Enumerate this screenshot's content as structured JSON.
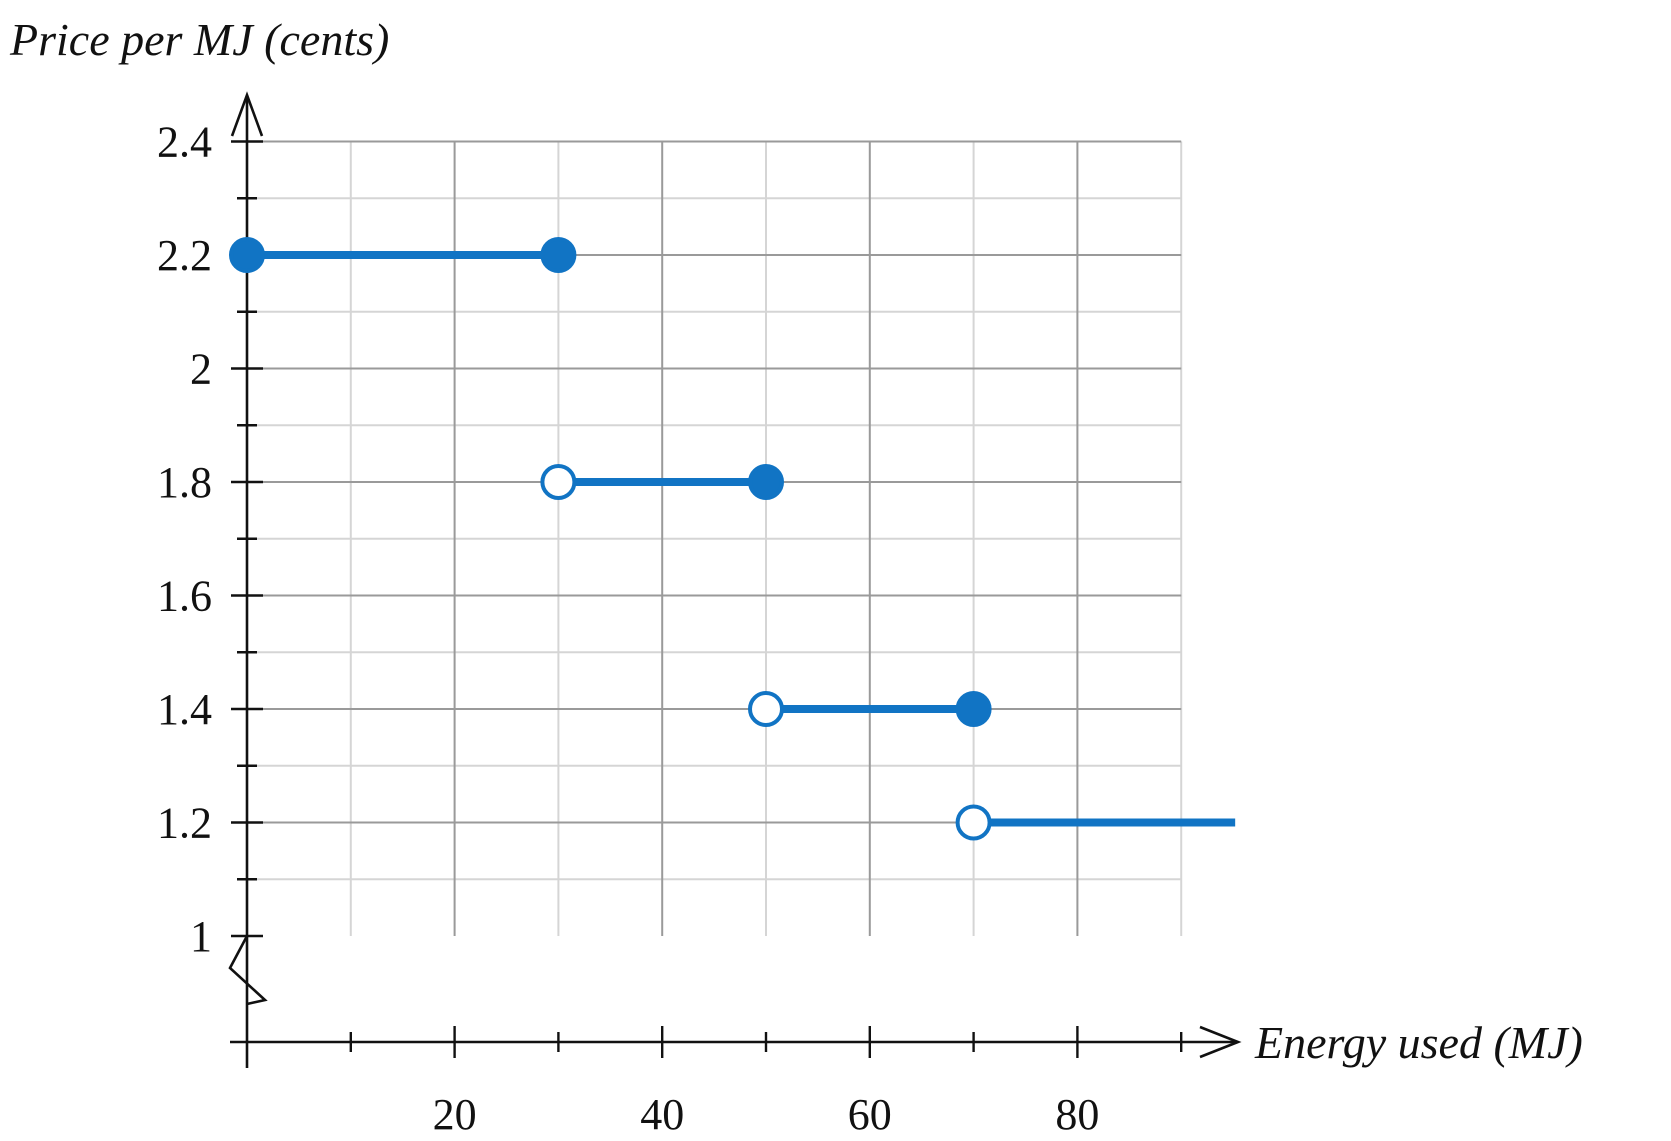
{
  "chart_data": {
    "type": "line",
    "title": "",
    "xlabel": "Energy used (MJ)",
    "ylabel": "Price per MJ (cents)",
    "xlim": [
      0,
      90
    ],
    "ylim": [
      1,
      2.4
    ],
    "x_axis_break": false,
    "y_axis_break": true,
    "grid": true,
    "x_ticks": [
      20,
      40,
      60,
      80
    ],
    "y_ticks": [
      1,
      1.2,
      1.4,
      1.6,
      1.8,
      2,
      2.2,
      2.4
    ],
    "y_tick_labels": [
      "1",
      "1.2",
      "1.4",
      "1.6",
      "1.8",
      "2",
      "2.2",
      "2.4"
    ],
    "color": "#1174c4",
    "segments": [
      {
        "x_start": 0,
        "x_end": 30,
        "y": 2.2,
        "start_closed": true,
        "end_closed": true
      },
      {
        "x_start": 30,
        "x_end": 50,
        "y": 1.8,
        "start_closed": false,
        "end_closed": true
      },
      {
        "x_start": 50,
        "x_end": 70,
        "y": 1.4,
        "start_closed": false,
        "end_closed": true
      },
      {
        "x_start": 70,
        "x_end": null,
        "y": 1.2,
        "start_closed": false,
        "end_closed": null
      }
    ]
  }
}
